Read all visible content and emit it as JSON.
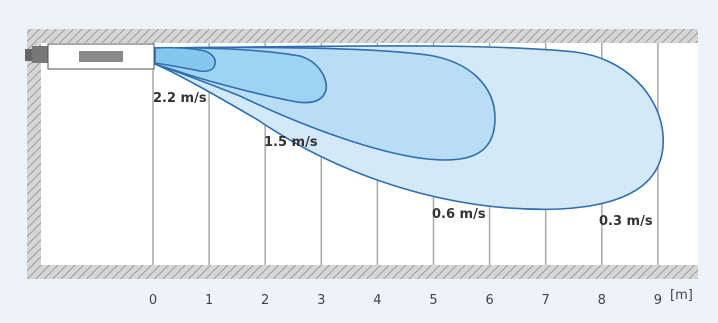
{
  "diagram": {
    "x_axis": {
      "ticks": [
        "0",
        "1",
        "2",
        "3",
        "4",
        "5",
        "6",
        "7",
        "8",
        "9"
      ],
      "unit": "[m]"
    },
    "zones": [
      {
        "label": "0.3 m/s",
        "reach_m": 9.1,
        "fill": "#d3e9f8"
      },
      {
        "label": "0.6 m/s",
        "reach_m": 6.1,
        "fill": "#b8ddf5"
      },
      {
        "label": "1.5 m/s",
        "reach_m": 3.1,
        "fill": "#9fd3f2"
      },
      {
        "label": "2.2 m/s",
        "reach_m": 1.1,
        "fill": "#86c7ee"
      }
    ],
    "colors": {
      "outline": "#2f6fb0",
      "background": "#eef3f9",
      "hatch": "#b3b3b3",
      "gridline": "#a8a8a8"
    }
  }
}
